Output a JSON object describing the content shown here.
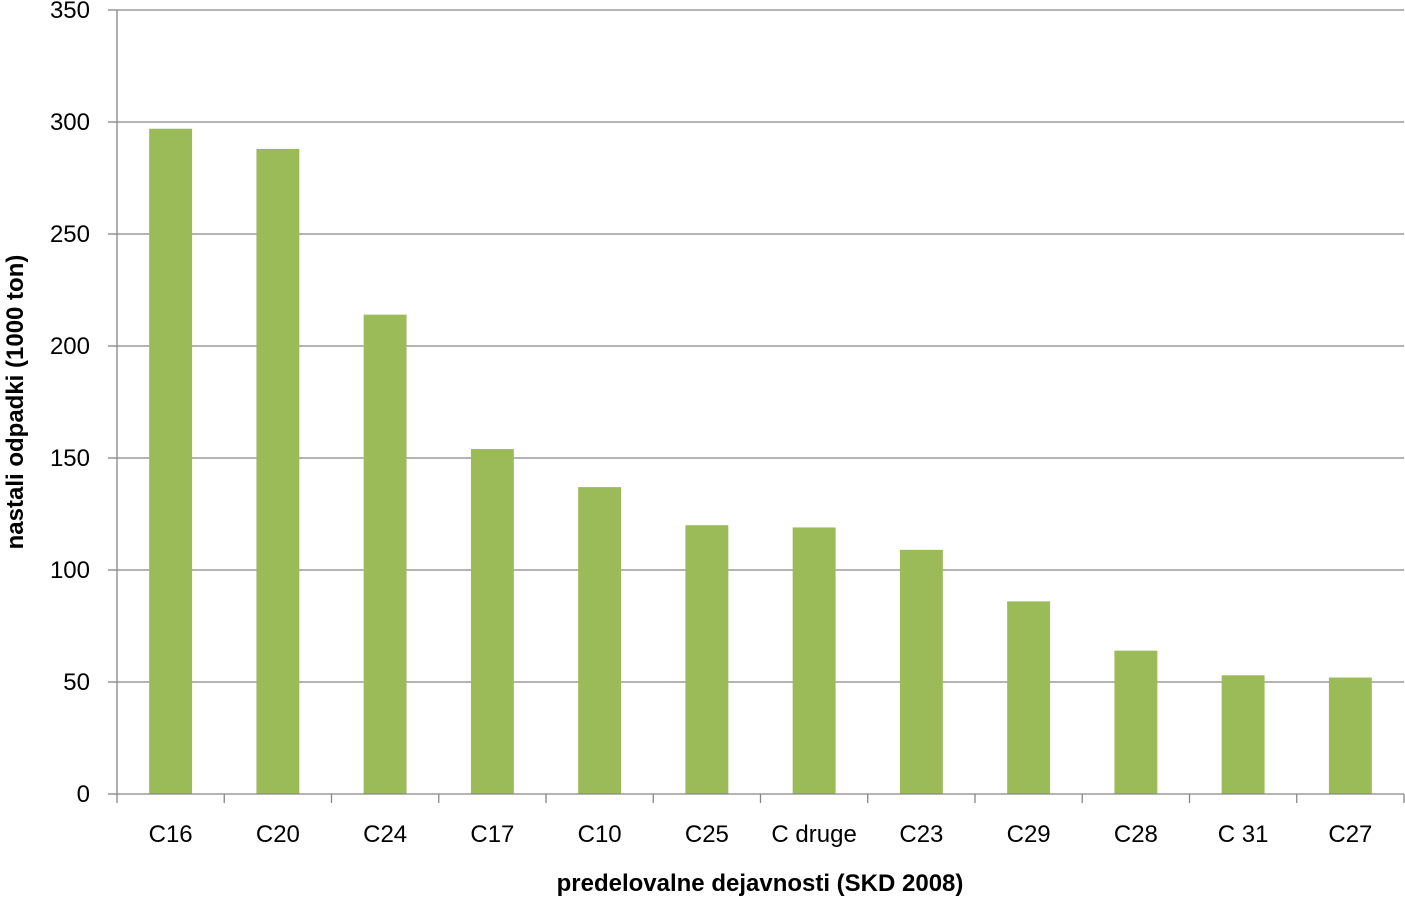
{
  "chart_data": {
    "type": "bar",
    "title": "",
    "xlabel": "predelovalne dejavnosti (SKD 2008)",
    "ylabel": "nastali odpadki (1000 ton)",
    "categories": [
      "C16",
      "C20",
      "C24",
      "C17",
      "C10",
      "C25",
      "C druge",
      "C23",
      "C29",
      "C28",
      "C 31",
      "C27"
    ],
    "values": [
      297,
      288,
      214,
      154,
      137,
      120,
      119,
      109,
      86,
      64,
      53,
      52
    ],
    "ylim": [
      0,
      350
    ],
    "yticks": [
      0,
      50,
      100,
      150,
      200,
      250,
      300,
      350
    ],
    "grid": true,
    "legend": "none",
    "colors": {
      "bar": "#9bbb59",
      "grid": "#868686",
      "axis": "#868686"
    }
  }
}
